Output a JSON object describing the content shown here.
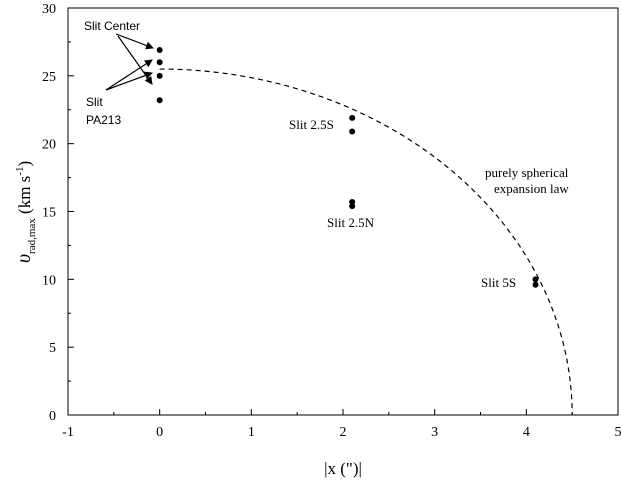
{
  "chart_data": {
    "type": "scatter",
    "title": "",
    "xlabel": "|x (\")|",
    "ylabel": {
      "main": "υ",
      "sub": "rad,max",
      "unit_open": " (km s",
      "unit_sup": "-1",
      "unit_close": ")"
    },
    "xlim": [
      -1,
      5
    ],
    "ylim": [
      0,
      30
    ],
    "xticks": [
      -1,
      0,
      1,
      2,
      3,
      4,
      5
    ],
    "yticks": [
      0,
      5,
      10,
      15,
      20,
      25,
      30
    ],
    "grid": false,
    "series": [
      {
        "points": [
          {
            "x": 0.0,
            "y": 26.9
          },
          {
            "x": 0.0,
            "y": 26.0
          },
          {
            "x": 0.0,
            "y": 25.0
          },
          {
            "x": 0.0,
            "y": 23.2
          },
          {
            "x": 2.1,
            "y": 21.9
          },
          {
            "x": 2.1,
            "y": 20.9
          },
          {
            "x": 2.1,
            "y": 15.7
          },
          {
            "x": 2.1,
            "y": 15.4
          },
          {
            "x": 4.1,
            "y": 10.0
          },
          {
            "x": 4.1,
            "y": 9.6
          }
        ]
      }
    ],
    "model_curve": {
      "label": [
        "purely spherical",
        "expansion law"
      ],
      "style": "dashed",
      "v0": 25.5,
      "r_max": 4.5
    },
    "annotations": [
      {
        "text": "Slit Center"
      },
      {
        "text": "Slit"
      },
      {
        "text": "PA213"
      },
      {
        "text": "Slit 2.5S"
      },
      {
        "text": "Slit 2.5N"
      },
      {
        "text": "Slit 5S"
      }
    ]
  }
}
